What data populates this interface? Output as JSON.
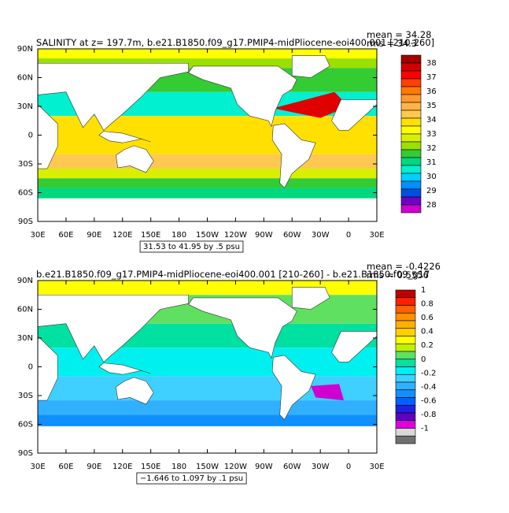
{
  "panels": [
    {
      "title": "SALINITY at z= 197.7m, b.e21.B1850.f09_g17.PMIP4-midPliocene-eoi400.001 [210-260]",
      "mean": "mean = 34.28",
      "rms": "rms = 34.3",
      "lat_labels": [
        "90N",
        "60N",
        "30N",
        "0",
        "30S",
        "60S",
        "90S"
      ],
      "lon_labels": [
        "30E",
        "60E",
        "90E",
        "120E",
        "150E",
        "180",
        "150W",
        "120W",
        "90W",
        "60W",
        "30W",
        "0",
        "30E"
      ],
      "colorbar_labels": [
        38,
        37,
        36,
        35,
        34,
        33,
        32,
        31,
        30,
        29,
        28
      ],
      "range_note": "31.53 to 41.95 by .5 psu"
    },
    {
      "title": "b.e21.B1850.f09_g17.PMIP4-midPliocene-eoi400.001 [210-260] - b.e21.B1850.f09_g17",
      "mean": "mean = -0.4226",
      "rms": "rms = 0.5556",
      "lat_labels": [
        "90N",
        "60N",
        "30N",
        "0",
        "30S",
        "60S",
        "90S"
      ],
      "lon_labels": [
        "30E",
        "60E",
        "90E",
        "120E",
        "150E",
        "180",
        "150W",
        "120W",
        "90W",
        "60W",
        "30W",
        "0",
        "30E"
      ],
      "colorbar_labels": [
        1,
        0.8,
        0.6,
        0.4,
        0.2,
        0,
        -0.2,
        -0.4,
        -0.6,
        -0.8,
        -1
      ],
      "range_note": "−1.646 to 1.097 by .1 psu"
    }
  ]
}
